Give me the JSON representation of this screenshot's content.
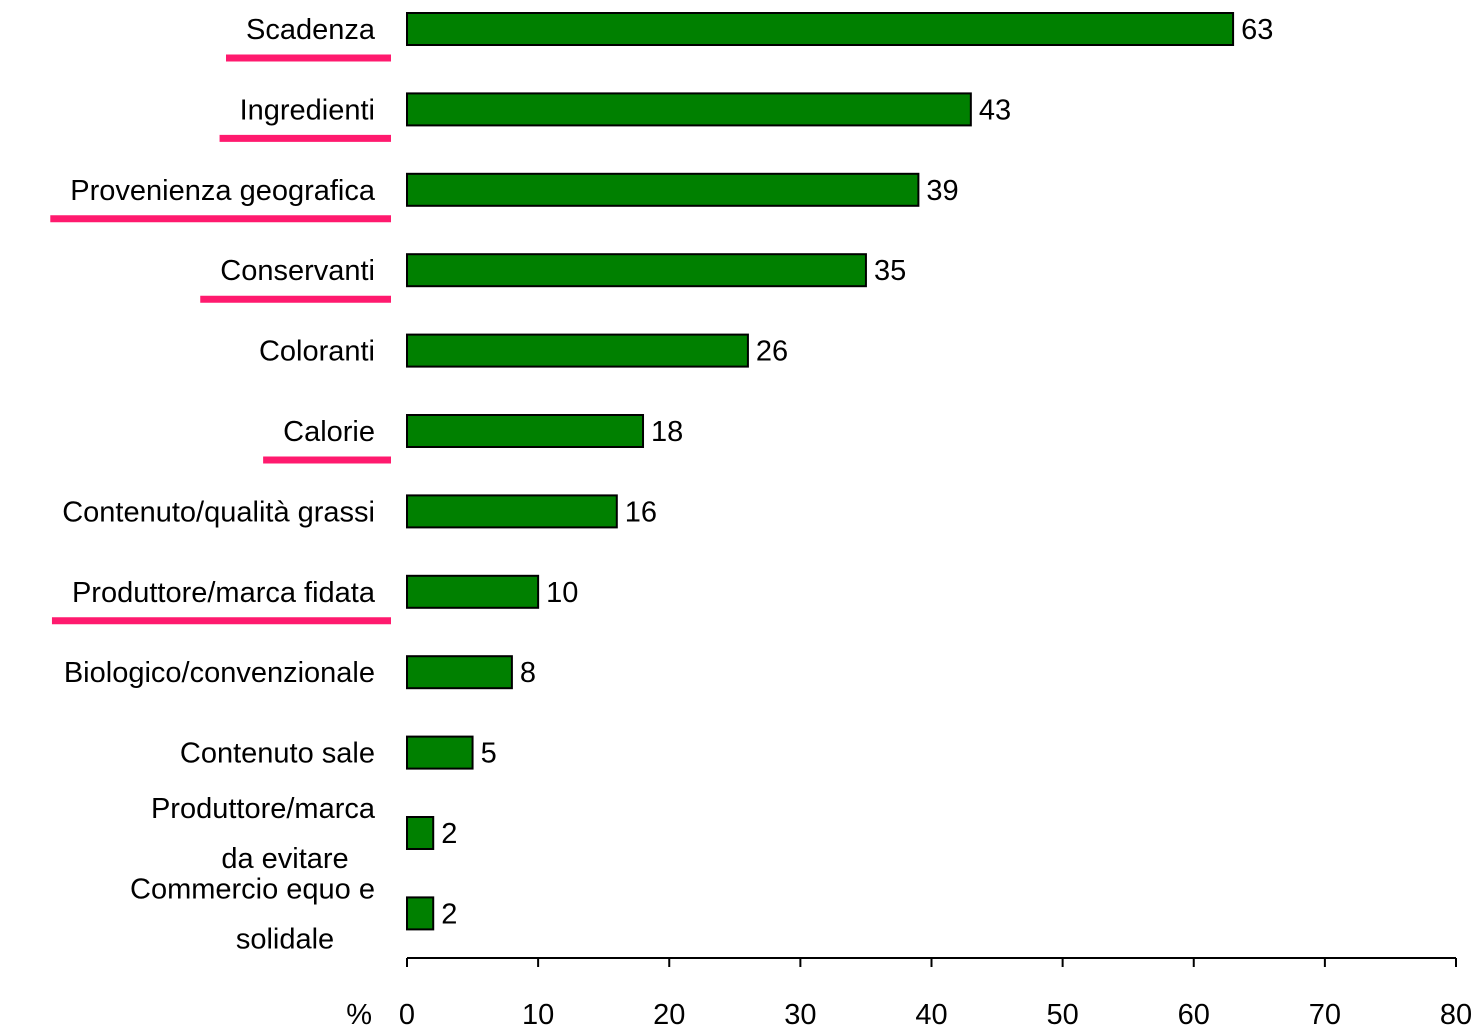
{
  "chart_data": {
    "type": "bar",
    "orientation": "horizontal",
    "categories": [
      "Scadenza",
      "Ingredienti",
      "Provenienza geografica",
      "Conservanti",
      "Coloranti",
      "Calorie",
      "Contenuto/qualità grassi",
      "Produttore/marca fidata",
      "Biologico/convenzionale",
      "Contenuto sale",
      "Produttore/marca da evitare",
      "Commercio equo e solidale"
    ],
    "category_lines": [
      [
        "Scadenza"
      ],
      [
        "Ingredienti"
      ],
      [
        "Provenienza geografica"
      ],
      [
        "Conservanti"
      ],
      [
        "Coloranti"
      ],
      [
        "Calorie"
      ],
      [
        "Contenuto/qualità grassi"
      ],
      [
        "Produttore/marca fidata"
      ],
      [
        "Biologico/convenzionale"
      ],
      [
        "Contenuto sale"
      ],
      [
        "Produttore/marca",
        "da evitare"
      ],
      [
        "Commercio equo e",
        "solidale"
      ]
    ],
    "values": [
      63,
      43,
      39,
      35,
      26,
      18,
      16,
      10,
      8,
      5,
      2,
      2
    ],
    "highlighted": [
      true,
      true,
      true,
      true,
      false,
      true,
      false,
      true,
      false,
      false,
      false,
      false
    ],
    "xlabel": "%",
    "xlim": [
      0,
      80
    ],
    "xticks": [
      0,
      10,
      20,
      30,
      40,
      50,
      60,
      70,
      80
    ],
    "grid": false,
    "legend": "none",
    "colors": {
      "bar_fill": "#008000",
      "bar_stroke": "#000000",
      "highlight": "#ff1a6e",
      "axis": "#000000"
    }
  }
}
